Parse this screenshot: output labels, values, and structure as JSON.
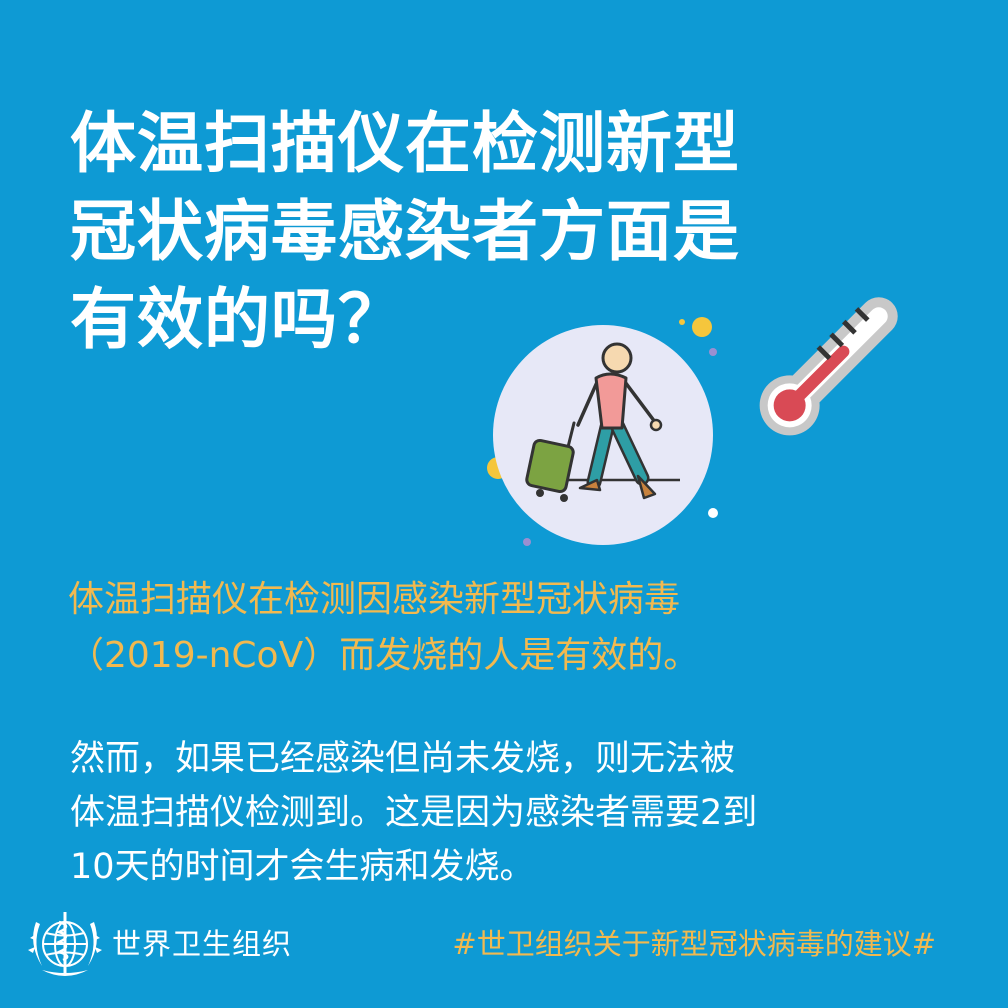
{
  "title": {
    "line1": "体温扫描仪在检测新型",
    "line2": "冠状病毒感染者方面是",
    "line3": "有效的吗？"
  },
  "highlight": {
    "line1": "体温扫描仪在检测因感染新型冠状病毒",
    "line2": "（2019-nCoV）而发烧的人是有效的。"
  },
  "body": {
    "line1": "然而，如果已经感染但尚未发烧，则无法被",
    "line2": "体温扫描仪检测到。这是因为感染者需要2到",
    "line3": "10天的时间才会生病和发烧。"
  },
  "footer": {
    "org_name": "世界卫生组织",
    "hashtag": "#世卫组织关于新型冠状病毒的建议#"
  },
  "icons": {
    "traveler": "traveler-with-suitcase-icon",
    "thermometer": "thermometer-icon",
    "logo": "who-emblem"
  },
  "colors": {
    "background": "#0e9ad4",
    "highlight": "#f2b94f",
    "text": "#ffffff"
  }
}
